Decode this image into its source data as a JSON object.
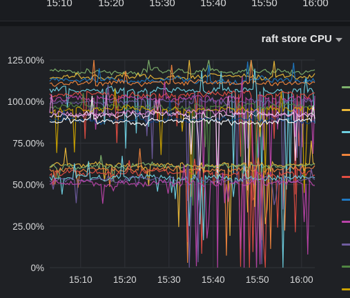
{
  "top_axis": {
    "tick_labels": [
      "15:10",
      "15:20",
      "15:30",
      "15:40",
      "15:50",
      "16:00"
    ]
  },
  "panel": {
    "title": "raft store CPU"
  },
  "chart_data": {
    "type": "line",
    "title": "raft store CPU",
    "xlabel": "",
    "ylabel": "",
    "x_ticks": [
      "15:10",
      "15:20",
      "15:30",
      "15:40",
      "15:50",
      "16:00"
    ],
    "y_ticks": [
      "0%",
      "25.00%",
      "50.00%",
      "75.00%",
      "100.00%",
      "125.00%"
    ],
    "x_range_minutes": [
      3,
      63
    ],
    "ylim": [
      0,
      125
    ],
    "grid": true,
    "legend_position": "right",
    "series_count": 21,
    "series_levels": [
      {
        "color": "#7eb26d",
        "approx_level": 118
      },
      {
        "color": "#eab839",
        "approx_level": 115
      },
      {
        "color": "#1f78c1",
        "approx_level": 113
      },
      {
        "color": "#ef843c",
        "approx_level": 111
      },
      {
        "color": "#6ed0e0",
        "approx_level": 107
      },
      {
        "color": "#e24d42",
        "approx_level": 104
      },
      {
        "color": "#ba43a9",
        "approx_level": 102
      },
      {
        "color": "#705da0",
        "approx_level": 100
      },
      {
        "color": "#508642",
        "approx_level": 97
      },
      {
        "color": "#cca300",
        "approx_level": 95
      },
      {
        "color": "#f9d9f9",
        "approx_level": 92
      },
      {
        "color": "#0a437c",
        "approx_level": 89
      },
      {
        "color": "#ffffff",
        "approx_level": 88
      },
      {
        "color": "#d683ce",
        "approx_level": 93
      },
      {
        "color": "#eab839",
        "approx_level": 62
      },
      {
        "color": "#7eb26d",
        "approx_level": 61
      },
      {
        "color": "#ef843c",
        "approx_level": 59
      },
      {
        "color": "#e24d42",
        "approx_level": 57
      },
      {
        "color": "#6ed0e0",
        "approx_level": 54
      },
      {
        "color": "#705da0",
        "approx_level": 53
      },
      {
        "color": "#ba43a9",
        "approx_level": 51
      }
    ],
    "legend_colors": [
      "#7eb26d",
      "#eab839",
      "#6ed0e0",
      "#ef843c",
      "#e24d42",
      "#1f78c1",
      "#ba43a9",
      "#705da0",
      "#508642",
      "#cca300"
    ]
  }
}
